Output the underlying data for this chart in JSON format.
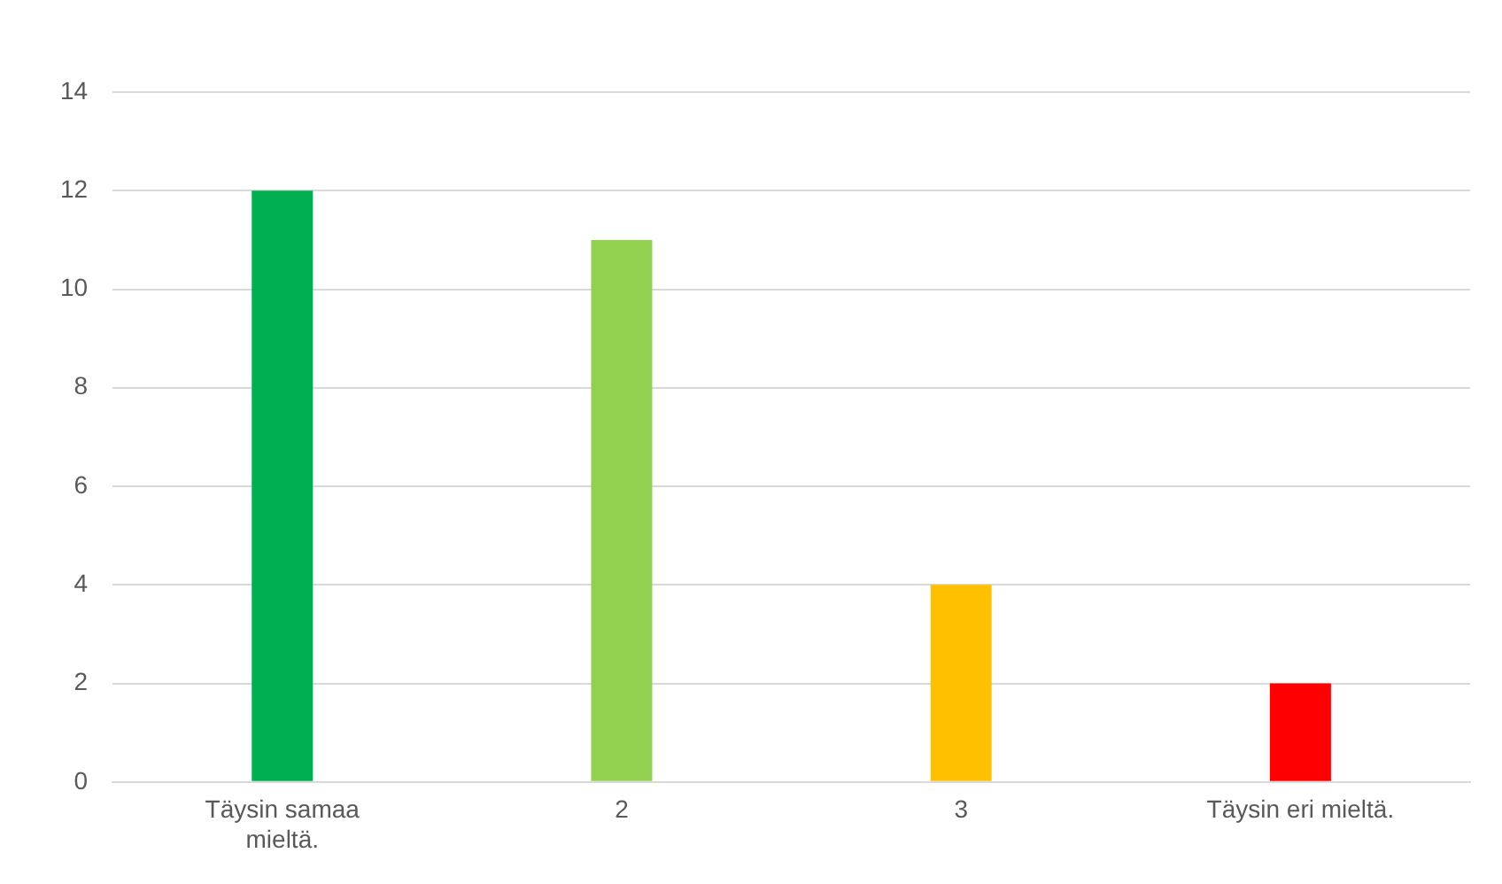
{
  "chart_data": {
    "type": "bar",
    "categories": [
      "Täysin samaa mieltä.",
      "2",
      "3",
      "Täysin eri mieltä."
    ],
    "series": [
      {
        "values": [
          12,
          11,
          4,
          2
        ],
        "colors": [
          "#00b050",
          "#92d050",
          "#ffc000",
          "#ff0000"
        ]
      }
    ],
    "ylim": [
      0,
      14
    ],
    "yticks": [
      0,
      2,
      4,
      6,
      8,
      10,
      12,
      14
    ],
    "grid": "y",
    "legend": false
  }
}
